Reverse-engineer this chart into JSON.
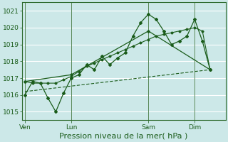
{
  "xlabel": "Pression niveau de la mer( hPa )",
  "bg_color": "#cce8e8",
  "grid_color": "#ffffff",
  "plot_color": "#1a5c1a",
  "axis_color": "#2d6a2d",
  "ylim": [
    1014.5,
    1021.5
  ],
  "yticks": [
    1015,
    1016,
    1017,
    1018,
    1019,
    1020,
    1021
  ],
  "day_labels": [
    "Ven",
    "Lun",
    "Sam",
    "Dim"
  ],
  "day_positions": [
    0,
    3,
    8,
    11
  ],
  "xlim": [
    -0.2,
    13.0
  ],
  "series1_x": [
    0,
    0.5,
    1,
    1.5,
    2,
    2.5,
    3,
    3.5,
    4,
    4.5,
    5,
    5.5,
    6,
    6.5,
    7,
    7.5,
    8,
    8.5,
    9,
    9.5,
    10,
    10.5,
    11,
    11.5,
    12
  ],
  "series1_y": [
    1016.0,
    1016.8,
    1016.7,
    1015.8,
    1015.0,
    1016.1,
    1017.0,
    1017.2,
    1017.8,
    1017.5,
    1018.3,
    1017.8,
    1018.2,
    1018.5,
    1019.5,
    1020.3,
    1020.8,
    1020.5,
    1019.8,
    1019.0,
    1019.2,
    1019.5,
    1020.5,
    1019.2,
    1017.5
  ],
  "series2_x": [
    0,
    0.5,
    1,
    1.5,
    2,
    2.5,
    3,
    3.5,
    4,
    4.5,
    5,
    5.5,
    6,
    6.5,
    7,
    7.5,
    8,
    8.5,
    9,
    9.5,
    10,
    10.5,
    11,
    11.5,
    12
  ],
  "series2_y": [
    1016.8,
    1016.7,
    1016.7,
    1016.7,
    1016.7,
    1016.9,
    1017.1,
    1017.4,
    1017.7,
    1017.9,
    1018.1,
    1018.3,
    1018.5,
    1018.7,
    1018.9,
    1019.1,
    1019.3,
    1019.5,
    1019.6,
    1019.7,
    1019.8,
    1019.9,
    1020.0,
    1019.8,
    1017.5
  ],
  "series3_x": [
    0,
    3,
    8,
    12
  ],
  "series3_y": [
    1016.8,
    1017.2,
    1019.8,
    1017.5
  ],
  "series4_x": [
    0,
    12
  ],
  "series4_y": [
    1016.2,
    1017.5
  ],
  "xlabel_fontsize": 8,
  "tick_fontsize": 6.5
}
